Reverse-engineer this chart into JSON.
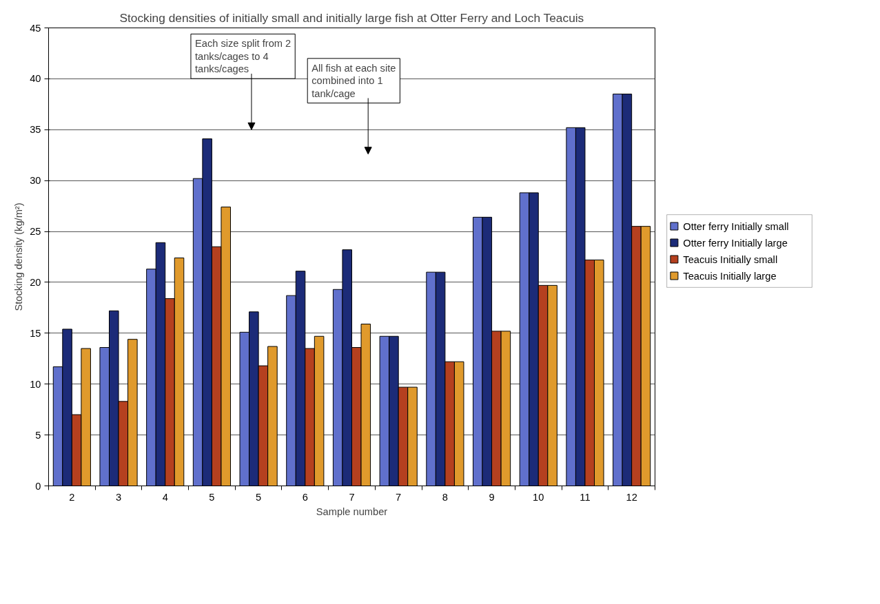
{
  "chart_data": {
    "type": "bar",
    "title": "Stocking densities of initially small and initially large fish at Otter Ferry and Loch Teacuis",
    "xlabel": "Sample number",
    "ylabel": "Stocking density (kg/m²)",
    "categories": [
      "2",
      "3",
      "4",
      "5",
      "5",
      "6",
      "7",
      "7",
      "8",
      "9",
      "10",
      "11",
      "12"
    ],
    "series": [
      {
        "name": "Otter ferry Initially small",
        "color": "#6070cc",
        "values": [
          11.7,
          13.6,
          21.3,
          30.2,
          15.1,
          18.7,
          19.3,
          14.7,
          21.0,
          26.4,
          28.8,
          35.2,
          38.5
        ]
      },
      {
        "name": "Otter ferry Initially large",
        "color": "#1c2b78",
        "values": [
          15.4,
          17.2,
          23.9,
          34.1,
          17.1,
          21.1,
          23.2,
          14.7,
          21.0,
          26.4,
          28.8,
          35.2,
          38.5
        ]
      },
      {
        "name": "Teacuis Initially small",
        "color": "#b5401f",
        "values": [
          7.0,
          8.3,
          18.4,
          23.5,
          11.8,
          13.5,
          13.6,
          9.7,
          12.2,
          15.2,
          19.7,
          22.2,
          25.5
        ]
      },
      {
        "name": "Teacuis Initially large",
        "color": "#e09a2c",
        "values": [
          13.5,
          14.4,
          22.4,
          27.4,
          13.7,
          14.7,
          15.9,
          9.7,
          12.2,
          15.2,
          19.7,
          22.2,
          25.5
        ]
      }
    ],
    "ylim": [
      0,
      45
    ],
    "yticks": [
      0,
      5,
      10,
      15,
      20,
      25,
      30,
      35,
      40,
      45
    ],
    "grid": "y",
    "legend": "right",
    "annotations": [
      "Each size split from 2 tanks/cages to 4 tanks/cages",
      "All fish at each site combined into 1 tank/cage"
    ]
  }
}
